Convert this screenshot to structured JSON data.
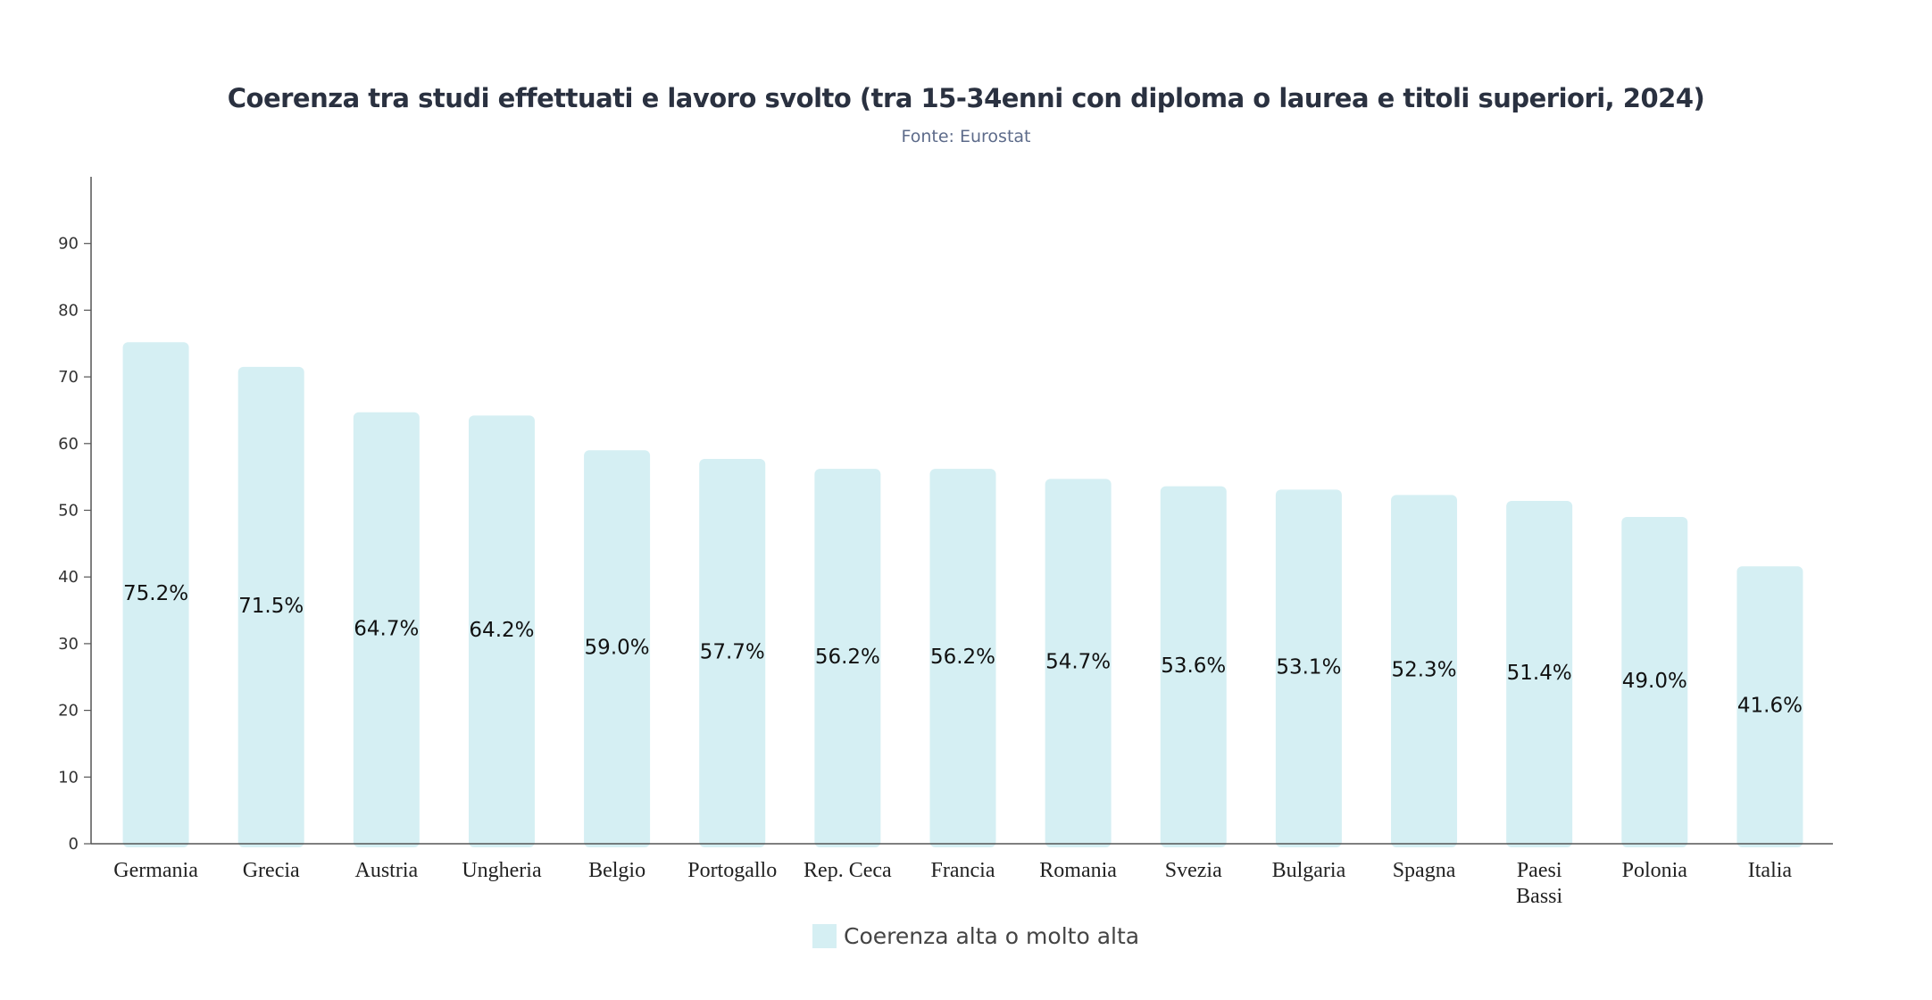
{
  "chart_data": {
    "type": "bar",
    "title": "Coerenza tra studi effettuati e lavoro svolto (tra 15-34enni con diploma o laurea e titoli superiori, 2024)",
    "subtitle": "Fonte: Eurostat",
    "categories": [
      "Germania",
      "Grecia",
      "Austria",
      "Ungheria",
      "Belgio",
      "Portogallo",
      "Rep. Ceca",
      "Francia",
      "Romania",
      "Svezia",
      "Bulgaria",
      "Spagna",
      "Paesi Bassi",
      "Polonia",
      "Italia"
    ],
    "series": [
      {
        "name": "Coerenza alta o molto alta",
        "values": [
          75.2,
          71.5,
          64.7,
          64.2,
          59.0,
          57.7,
          56.2,
          56.2,
          54.7,
          53.6,
          53.1,
          52.3,
          51.4,
          49.0,
          41.6
        ],
        "data_labels": [
          "75.2%",
          "71.5%",
          "64.7%",
          "64.2%",
          "59.0%",
          "57.7%",
          "56.2%",
          "56.2%",
          "54.7%",
          "53.6%",
          "53.1%",
          "52.3%",
          "51.4%",
          "49.0%",
          "41.6%"
        ],
        "color": "#d5eff3"
      }
    ],
    "yticks": [
      0,
      10,
      20,
      30,
      40,
      50,
      60,
      70,
      80,
      90
    ],
    "ylim": [
      0,
      100
    ],
    "xlabel": "",
    "ylabel": "",
    "grid": false,
    "legend_position": "bottom-center",
    "axis_color": "#555555"
  }
}
